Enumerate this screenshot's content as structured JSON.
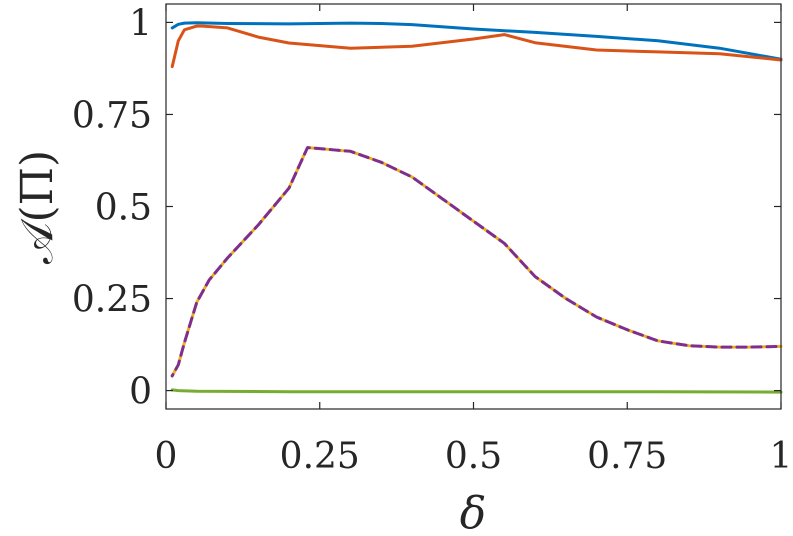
{
  "chart_data": {
    "type": "line",
    "xlabel": "δ",
    "ylabel": "𝒜(Π)",
    "xlim": [
      0,
      1
    ],
    "ylim": [
      -0.05,
      1.05
    ],
    "x_ticks": [
      0,
      0.25,
      0.5,
      0.75,
      1
    ],
    "x_tick_labels": [
      "0",
      "0.25",
      "0.5",
      "0.75",
      "1"
    ],
    "y_ticks": [
      0,
      0.25,
      0.5,
      0.75,
      1
    ],
    "y_tick_labels": [
      "0",
      "0.25",
      "0.5",
      "0.75",
      "1"
    ],
    "grid": false,
    "series": [
      {
        "color": "#0072BD",
        "style": "solid",
        "x": [
          0.01,
          0.02,
          0.03,
          0.05,
          0.1,
          0.2,
          0.3,
          0.35,
          0.4,
          0.5,
          0.6,
          0.7,
          0.8,
          0.9,
          1.0
        ],
        "y": [
          0.985,
          0.995,
          0.998,
          0.999,
          0.997,
          0.996,
          0.998,
          0.997,
          0.994,
          0.982,
          0.973,
          0.962,
          0.95,
          0.93,
          0.9
        ]
      },
      {
        "color": "#D95319",
        "style": "solid",
        "x": [
          0.01,
          0.02,
          0.03,
          0.05,
          0.06,
          0.1,
          0.15,
          0.2,
          0.3,
          0.4,
          0.5,
          0.55,
          0.6,
          0.7,
          0.8,
          0.9,
          1.0
        ],
        "y": [
          0.88,
          0.95,
          0.98,
          0.99,
          0.99,
          0.985,
          0.96,
          0.944,
          0.93,
          0.935,
          0.955,
          0.967,
          0.945,
          0.925,
          0.92,
          0.915,
          0.898
        ]
      },
      {
        "color": "#EDB120",
        "style": "dashed",
        "x": [
          0.01,
          0.02,
          0.03,
          0.05,
          0.07,
          0.1,
          0.15,
          0.2,
          0.23,
          0.3,
          0.35,
          0.4,
          0.45,
          0.5,
          0.55,
          0.6,
          0.65,
          0.7,
          0.75,
          0.8,
          0.85,
          0.9,
          0.95,
          1.0
        ],
        "y": [
          0.04,
          0.07,
          0.13,
          0.24,
          0.3,
          0.36,
          0.45,
          0.55,
          0.66,
          0.65,
          0.62,
          0.58,
          0.52,
          0.46,
          0.4,
          0.31,
          0.25,
          0.2,
          0.165,
          0.135,
          0.122,
          0.118,
          0.118,
          0.12
        ]
      },
      {
        "color": "#7E2F8E",
        "style": "dashed-offset",
        "x": [
          0.01,
          0.02,
          0.03,
          0.05,
          0.07,
          0.1,
          0.15,
          0.2,
          0.23,
          0.3,
          0.35,
          0.4,
          0.45,
          0.5,
          0.55,
          0.6,
          0.65,
          0.7,
          0.75,
          0.8,
          0.85,
          0.9,
          0.95,
          1.0
        ],
        "y": [
          0.04,
          0.07,
          0.13,
          0.24,
          0.3,
          0.36,
          0.45,
          0.55,
          0.66,
          0.65,
          0.62,
          0.58,
          0.52,
          0.46,
          0.4,
          0.31,
          0.25,
          0.2,
          0.165,
          0.135,
          0.122,
          0.118,
          0.118,
          0.12
        ]
      },
      {
        "color": "#77AC30",
        "style": "solid",
        "x": [
          0.01,
          0.02,
          0.05,
          0.2,
          0.5,
          0.8,
          1.0
        ],
        "y": [
          0.002,
          0.0,
          -0.002,
          -0.003,
          -0.003,
          -0.003,
          -0.004
        ]
      }
    ]
  }
}
